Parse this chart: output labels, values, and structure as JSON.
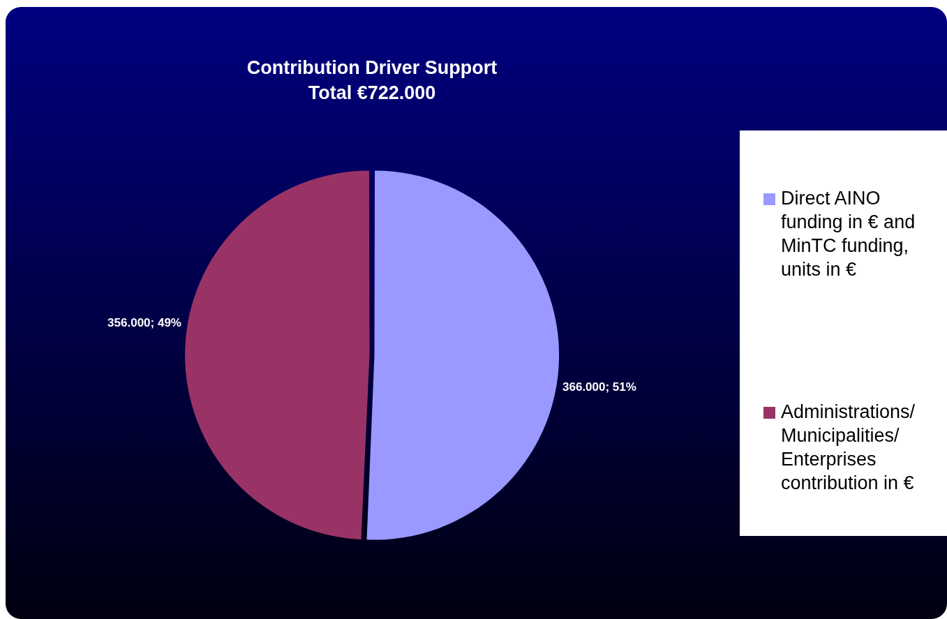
{
  "chart_data": {
    "type": "pie",
    "title": "Contribution Driver Support",
    "subtitle": "Total €722.000",
    "categories": [
      "Direct AINO funding in € and MinTC funding, units in €",
      "Administrations/ Municipalities/ Enterprises contribution in €"
    ],
    "values": [
      366000,
      356000
    ],
    "colors": [
      "#9999ff",
      "#993366"
    ],
    "value_labels": [
      "366.000; 51%",
      "356.000; 49%"
    ],
    "legend": "right"
  }
}
